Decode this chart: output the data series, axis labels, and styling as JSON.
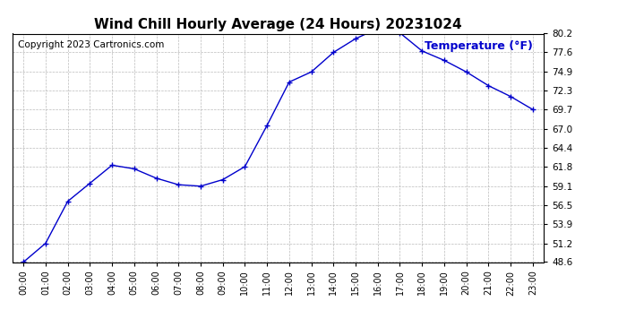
{
  "title": "Wind Chill Hourly Average (24 Hours) 20231024",
  "ylabel": "Temperature (°F)",
  "copyright": "Copyright 2023 Cartronics.com",
  "hours": [
    "00:00",
    "01:00",
    "02:00",
    "03:00",
    "04:00",
    "05:00",
    "06:00",
    "07:00",
    "08:00",
    "09:00",
    "10:00",
    "11:00",
    "12:00",
    "13:00",
    "14:00",
    "15:00",
    "16:00",
    "17:00",
    "18:00",
    "19:00",
    "20:00",
    "21:00",
    "22:00",
    "23:00"
  ],
  "values": [
    48.6,
    51.2,
    57.0,
    59.5,
    62.0,
    61.5,
    60.2,
    59.3,
    59.1,
    60.0,
    61.8,
    67.5,
    73.5,
    74.9,
    77.6,
    79.5,
    80.9,
    80.3,
    77.8,
    76.5,
    74.9,
    73.0,
    71.5,
    69.7
  ],
  "line_color": "#0000cc",
  "marker": "+",
  "marker_size": 5,
  "marker_color": "#0000cc",
  "ylim_min": 48.6,
  "ylim_max": 80.2,
  "yticks": [
    48.6,
    51.2,
    53.9,
    56.5,
    59.1,
    61.8,
    64.4,
    67.0,
    69.7,
    72.3,
    74.9,
    77.6,
    80.2
  ],
  "grid_color": "#aaaaaa",
  "background_color": "#ffffff",
  "title_fontsize": 11,
  "ylabel_fontsize": 9,
  "ylabel_color": "#0000cc",
  "copyright_fontsize": 7.5,
  "copyright_color": "#000000",
  "tick_fontsize": 7.5,
  "xtick_fontsize": 7
}
